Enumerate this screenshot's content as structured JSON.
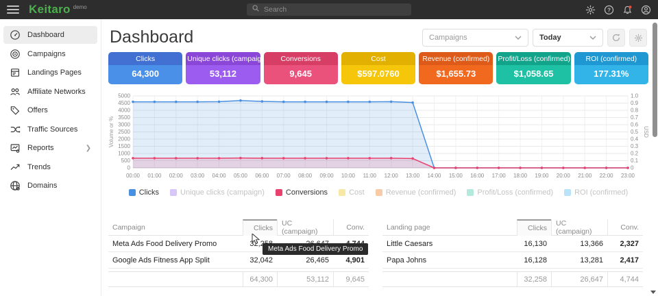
{
  "topbar": {
    "logo": "Keitaro",
    "logo_badge": "demo",
    "search_placeholder": "Search"
  },
  "sidebar": {
    "items": [
      {
        "label": "Dashboard",
        "icon": "gauge-icon",
        "active": true
      },
      {
        "label": "Campaigns",
        "icon": "target-icon",
        "active": false
      },
      {
        "label": "Landings Pages",
        "icon": "document-icon",
        "active": false
      },
      {
        "label": "Affiliate Networks",
        "icon": "users-icon",
        "active": false
      },
      {
        "label": "Offers",
        "icon": "tag-icon",
        "active": false
      },
      {
        "label": "Traffic Sources",
        "icon": "split-icon",
        "active": false
      },
      {
        "label": "Reports",
        "icon": "report-icon",
        "active": false,
        "chevron": true
      },
      {
        "label": "Trends",
        "icon": "trend-icon",
        "active": false
      },
      {
        "label": "Domains",
        "icon": "globe-icon",
        "active": false
      }
    ]
  },
  "header": {
    "title": "Dashboard",
    "campaign_filter": "Campaigns",
    "date_filter": "Today"
  },
  "cards": [
    {
      "label": "Clicks",
      "value": "64,300",
      "header_color": "#4170d2",
      "body_color": "#4a8fe8"
    },
    {
      "label": "Unique clicks (campaign)",
      "value": "53,112",
      "header_color": "#8a46d6",
      "body_color": "#9c5cf0"
    },
    {
      "label": "Conversions",
      "value": "9,645",
      "header_color": "#d63e66",
      "body_color": "#ea517b"
    },
    {
      "label": "Cost",
      "value": "$597.0760",
      "header_color": "#e2b000",
      "body_color": "#f5c60a"
    },
    {
      "label": "Revenue (confirmed)",
      "value": "$1,655.73",
      "header_color": "#dd5a18",
      "body_color": "#f1691f"
    },
    {
      "label": "Profit/Loss (confirmed)",
      "value": "$1,058.65",
      "header_color": "#12a38b",
      "body_color": "#1fc1a4"
    },
    {
      "label": "ROI (confirmed)",
      "value": "177.31%",
      "header_color": "#1f97d2",
      "body_color": "#33b4e8"
    }
  ],
  "chart_data": {
    "type": "area",
    "x": [
      "00:00",
      "01:00",
      "02:00",
      "03:00",
      "04:00",
      "05:00",
      "06:00",
      "07:00",
      "08:00",
      "09:00",
      "10:00",
      "11:00",
      "12:00",
      "13:00",
      "14:00",
      "15:00",
      "16:00",
      "17:00",
      "18:00",
      "19:00",
      "20:00",
      "21:00",
      "22:00",
      "23:00"
    ],
    "series": [
      {
        "name": "Clicks",
        "color": "#4a90e2",
        "fill": "rgba(74,144,226,0.16)",
        "values": [
          4590,
          4590,
          4590,
          4590,
          4600,
          4680,
          4620,
          4590,
          4590,
          4590,
          4590,
          4590,
          4600,
          4540,
          0,
          0,
          0,
          0,
          0,
          0,
          0,
          0,
          0,
          0
        ]
      },
      {
        "name": "Conversions",
        "color": "#e9426e",
        "fill": "rgba(233,66,110,0.16)",
        "values": [
          670,
          670,
          670,
          670,
          670,
          685,
          675,
          670,
          670,
          670,
          670,
          670,
          675,
          650,
          0,
          0,
          0,
          0,
          0,
          0,
          0,
          0,
          0,
          0
        ]
      }
    ],
    "left_axis": {
      "label": "Volume or %",
      "min": 0,
      "max": 5000,
      "step": 500
    },
    "right_axis": {
      "label": "USD",
      "min": 0,
      "max": 1.0,
      "step": 0.1
    },
    "grid": true,
    "legend_position": "bottom"
  },
  "legend": [
    {
      "label": "Clicks",
      "color": "#4a90e2",
      "active": true
    },
    {
      "label": "Unique clicks (campaign)",
      "color": "#d8c6f8",
      "active": false
    },
    {
      "label": "Conversions",
      "color": "#e9426e",
      "active": true
    },
    {
      "label": "Cost",
      "color": "#f7e8a6",
      "active": false
    },
    {
      "label": "Revenue (confirmed)",
      "color": "#f8cba6",
      "active": false
    },
    {
      "label": "Profit/Loss (confirmed)",
      "color": "#b4eade",
      "active": false
    },
    {
      "label": "ROI (confirmed)",
      "color": "#b9e3f8",
      "active": false
    }
  ],
  "tables": {
    "campaigns": {
      "columns": [
        "Campaign",
        "Clicks",
        "UC (campaign)",
        "Conv."
      ],
      "sorted_column": "Clicks",
      "rows": [
        [
          "Meta Ads Food Delivery Promo",
          "32,258",
          "26,647",
          "4,744"
        ],
        [
          "Google Ads Fitness App Split",
          "32,042",
          "26,465",
          "4,901"
        ]
      ],
      "totals": [
        "",
        "64,300",
        "53,112",
        "9,645"
      ]
    },
    "landings": {
      "columns": [
        "Landing page",
        "Clicks",
        "UC (campaign)",
        "Conv."
      ],
      "sorted_column": "Clicks",
      "rows": [
        [
          "Little Caesars",
          "16,130",
          "13,366",
          "2,327"
        ],
        [
          "Papa Johns",
          "16,128",
          "13,281",
          "2,417"
        ]
      ],
      "totals": [
        "",
        "32,258",
        "26,647",
        "4,744"
      ]
    }
  },
  "tooltip": {
    "text": "Meta Ads Food Delivery Promo"
  }
}
